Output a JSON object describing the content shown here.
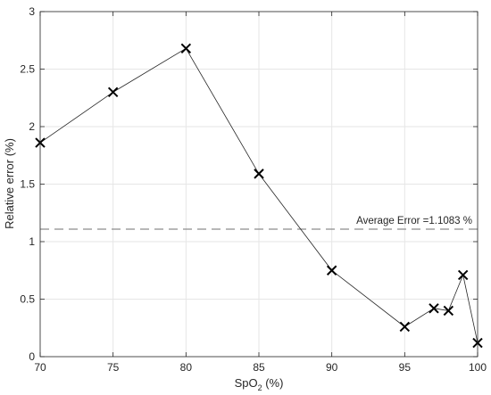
{
  "chart_data": {
    "type": "line",
    "title": "",
    "xlabel": {
      "prefix": "SpO",
      "subscript": "2",
      "suffix": " (%)"
    },
    "ylabel": "Relative error (%)",
    "xlim": [
      70,
      100
    ],
    "ylim": [
      0,
      3
    ],
    "xticks": [
      70,
      75,
      80,
      85,
      90,
      95,
      100
    ],
    "yticks": [
      0,
      0.5,
      1,
      1.5,
      2,
      2.5,
      3
    ],
    "grid": true,
    "marker": "x",
    "series": [
      {
        "x": [
          70,
          75,
          80,
          85,
          90,
          95,
          97,
          98,
          99,
          100
        ],
        "y": [
          1.86,
          2.3,
          2.68,
          1.59,
          0.75,
          0.26,
          0.42,
          0.4,
          0.71,
          0.12
        ]
      }
    ],
    "reference_line": {
      "y": 1.1083,
      "style": "dashed",
      "label": "Average Error =1.1083 %"
    }
  }
}
